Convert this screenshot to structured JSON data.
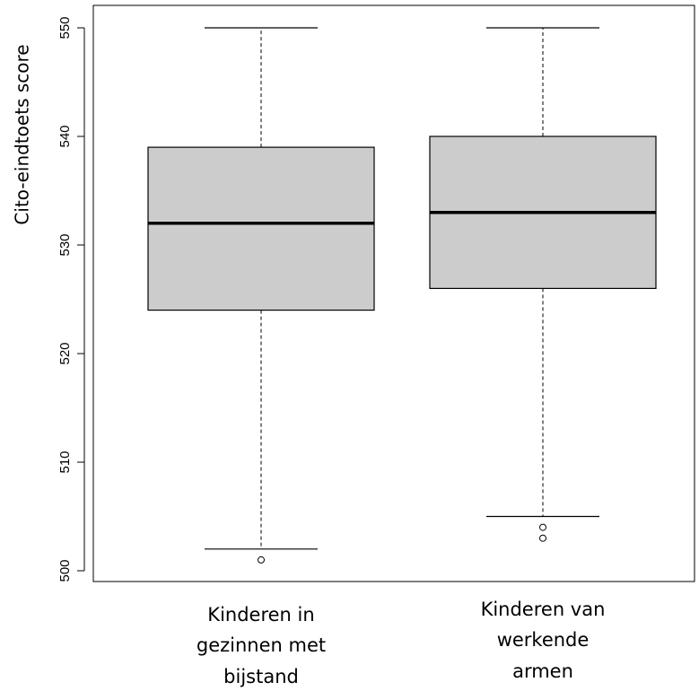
{
  "chart_data": {
    "type": "boxplot",
    "ylabel": "Cito-eindtoets score",
    "ylim": [
      500,
      550
    ],
    "yticks": [
      500,
      510,
      520,
      530,
      540,
      550
    ],
    "box_fill": "#cccccc",
    "grid": false,
    "categories": [
      [
        "Kinderen in",
        "gezinnen met",
        "bijstand"
      ],
      [
        "Kinderen van",
        "werkende",
        "armen"
      ]
    ],
    "boxes": [
      {
        "min": 502,
        "q1": 524,
        "median": 532,
        "q3": 539,
        "max": 550,
        "outliers": [
          501
        ]
      },
      {
        "min": 505,
        "q1": 526,
        "median": 533,
        "q3": 540,
        "max": 550,
        "outliers": [
          504,
          503
        ]
      }
    ]
  }
}
